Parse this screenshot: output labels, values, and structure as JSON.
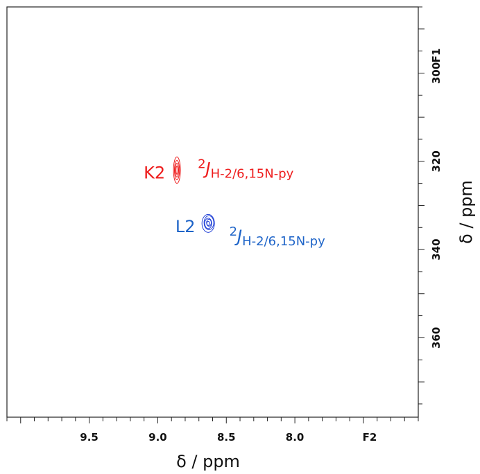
{
  "chart_data": {
    "type": "contour",
    "xlabel": "δ / ppm",
    "ylabel": "δ / ppm",
    "x_axis_unit_label": "F2",
    "y_axis_unit_label": "F1",
    "x_reversed": true,
    "y_reversed": true,
    "xlim": [
      10.1,
      7.1
    ],
    "ylim": [
      285,
      378
    ],
    "xticks": [
      9.5,
      9.0,
      8.5,
      8.0
    ],
    "xtick_labels": [
      "9.5",
      "9.0",
      "8.5",
      "8.0"
    ],
    "yticks": [
      300,
      320,
      340,
      360
    ],
    "ytick_labels": [
      "300",
      "320",
      "340",
      "360"
    ],
    "grid": false,
    "peaks": [
      {
        "label": "K2",
        "x": 8.86,
        "y": 322,
        "color": "#ee1c1c",
        "coupling": {
          "sup": "2",
          "main": "J",
          "sub": "H-2/6,15N-py"
        }
      },
      {
        "label": "L2",
        "x": 8.63,
        "y": 334,
        "color": "#1f3fd6",
        "label_color": "#1e64c8",
        "coupling": {
          "sup": "2",
          "main": "J",
          "sub": "H-2/6,15N-py"
        }
      }
    ]
  }
}
